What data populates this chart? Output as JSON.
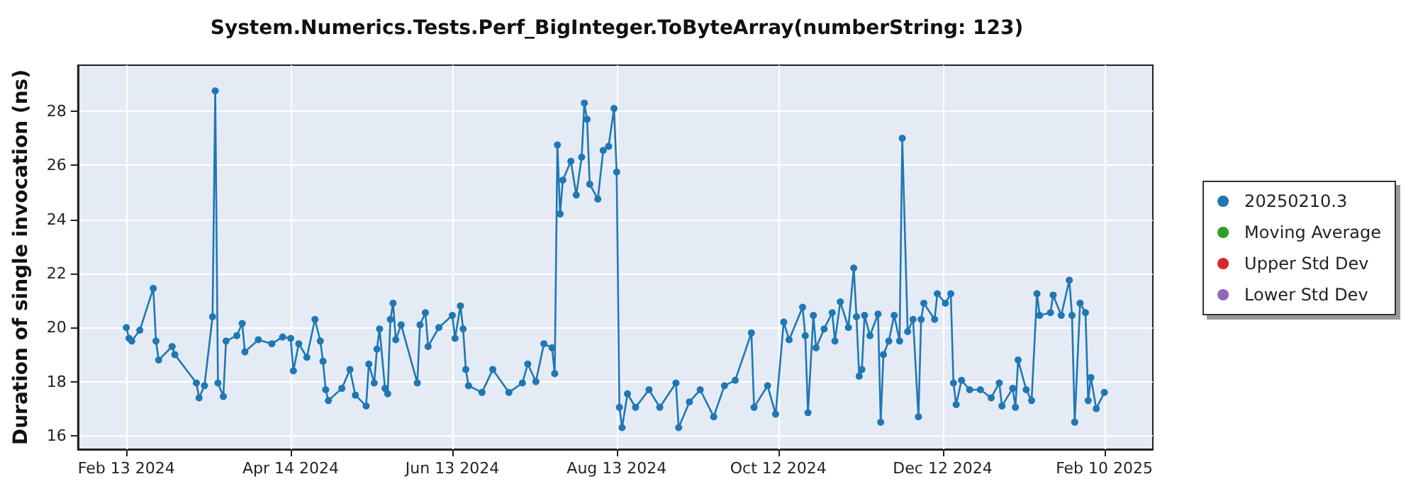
{
  "chart_data": {
    "type": "line",
    "title": "System.Numerics.Tests.Perf_BigInteger.ToByteArray(numberString: 123)",
    "ylabel": "Duration of single invocation (ns)",
    "xlim": [
      "2024-01-26",
      "2025-02-28"
    ],
    "xticks": [
      {
        "value": "2024-02-13",
        "label": "Feb 13 2024"
      },
      {
        "value": "2024-04-14",
        "label": "Apr 14 2024"
      },
      {
        "value": "2024-06-13",
        "label": "Jun 13 2024"
      },
      {
        "value": "2024-08-13",
        "label": "Aug 13 2024"
      },
      {
        "value": "2024-10-12",
        "label": "Oct 12 2024"
      },
      {
        "value": "2024-12-12",
        "label": "Dec 12 2024"
      },
      {
        "value": "2025-02-10",
        "label": "Feb 10 2025"
      }
    ],
    "ylim": [
      15.5,
      29.7
    ],
    "yticks": [
      16,
      18,
      20,
      22,
      24,
      26,
      28
    ],
    "grid": true,
    "legend": "right",
    "marker": "circle",
    "line_style": "solid",
    "series": [
      {
        "name": "20250210.3",
        "color": "#1f77b4",
        "x": [
          "2024-02-13",
          "2024-02-14",
          "2024-02-15",
          "2024-02-18",
          "2024-02-23",
          "2024-02-24",
          "2024-02-25",
          "2024-03-01",
          "2024-03-02",
          "2024-03-10",
          "2024-03-11",
          "2024-03-13",
          "2024-03-16",
          "2024-03-17",
          "2024-03-18",
          "2024-03-20",
          "2024-03-21",
          "2024-03-25",
          "2024-03-27",
          "2024-03-28",
          "2024-04-02",
          "2024-04-07",
          "2024-04-11",
          "2024-04-14",
          "2024-04-15",
          "2024-04-17",
          "2024-04-20",
          "2024-04-23",
          "2024-04-25",
          "2024-04-26",
          "2024-04-27",
          "2024-04-28",
          "2024-05-03",
          "2024-05-06",
          "2024-05-08",
          "2024-05-12",
          "2024-05-13",
          "2024-05-15",
          "2024-05-16",
          "2024-05-17",
          "2024-05-19",
          "2024-05-20",
          "2024-05-21",
          "2024-05-22",
          "2024-05-23",
          "2024-05-25",
          "2024-05-31",
          "2024-06-01",
          "2024-06-03",
          "2024-06-04",
          "2024-06-08",
          "2024-06-13",
          "2024-06-14",
          "2024-06-16",
          "2024-06-17",
          "2024-06-18",
          "2024-06-19",
          "2024-06-24",
          "2024-06-28",
          "2024-07-04",
          "2024-07-09",
          "2024-07-11",
          "2024-07-14",
          "2024-07-17",
          "2024-07-20",
          "2024-07-21",
          "2024-07-22",
          "2024-07-23",
          "2024-07-24",
          "2024-07-27",
          "2024-07-29",
          "2024-07-31",
          "2024-08-01",
          "2024-08-02",
          "2024-08-03",
          "2024-08-06",
          "2024-08-08",
          "2024-08-10",
          "2024-08-12",
          "2024-08-13",
          "2024-08-14",
          "2024-08-15",
          "2024-08-17",
          "2024-08-20",
          "2024-08-25",
          "2024-08-29",
          "2024-09-04",
          "2024-09-05",
          "2024-09-09",
          "2024-09-13",
          "2024-09-18",
          "2024-09-22",
          "2024-09-26",
          "2024-10-02",
          "2024-10-03",
          "2024-10-08",
          "2024-10-11",
          "2024-10-14",
          "2024-10-16",
          "2024-10-21",
          "2024-10-22",
          "2024-10-23",
          "2024-10-25",
          "2024-10-26",
          "2024-10-29",
          "2024-11-01",
          "2024-11-02",
          "2024-11-04",
          "2024-11-07",
          "2024-11-09",
          "2024-11-10",
          "2024-11-11",
          "2024-11-12",
          "2024-11-13",
          "2024-11-15",
          "2024-11-18",
          "2024-11-19",
          "2024-11-20",
          "2024-11-22",
          "2024-11-24",
          "2024-11-26",
          "2024-11-27",
          "2024-11-29",
          "2024-12-01",
          "2024-12-03",
          "2024-12-04",
          "2024-12-05",
          "2024-12-09",
          "2024-12-10",
          "2024-12-13",
          "2024-12-15",
          "2024-12-16",
          "2024-12-17",
          "2024-12-19",
          "2024-12-22",
          "2024-12-26",
          "2024-12-30",
          "2025-01-02",
          "2025-01-03",
          "2025-01-07",
          "2025-01-08",
          "2025-01-09",
          "2025-01-12",
          "2025-01-14",
          "2025-01-16",
          "2025-01-17",
          "2025-01-21",
          "2025-01-22",
          "2025-01-25",
          "2025-01-28",
          "2025-01-29",
          "2025-01-30",
          "2025-02-01",
          "2025-02-03",
          "2025-02-04",
          "2025-02-05",
          "2025-02-07",
          "2025-02-10"
        ],
        "values": [
          20.0,
          19.6,
          19.5,
          19.9,
          21.45,
          19.5,
          18.8,
          19.3,
          19.0,
          17.95,
          17.4,
          17.85,
          20.4,
          28.75,
          17.95,
          17.45,
          19.5,
          19.7,
          20.15,
          19.1,
          19.55,
          19.4,
          19.65,
          19.6,
          18.4,
          19.4,
          18.9,
          20.3,
          19.5,
          18.75,
          17.7,
          17.3,
          17.75,
          18.45,
          17.5,
          17.1,
          18.65,
          17.95,
          19.2,
          19.95,
          17.75,
          17.55,
          20.3,
          20.9,
          19.55,
          20.1,
          17.95,
          20.1,
          20.55,
          19.3,
          20.0,
          20.45,
          19.6,
          20.8,
          19.95,
          18.45,
          17.85,
          17.6,
          18.45,
          17.6,
          17.95,
          18.65,
          18.0,
          19.4,
          19.25,
          18.3,
          26.75,
          24.2,
          25.45,
          26.15,
          24.9,
          26.3,
          28.3,
          27.7,
          25.3,
          24.75,
          26.55,
          26.7,
          28.1,
          25.75,
          17.05,
          16.3,
          17.55,
          17.05,
          17.7,
          17.05,
          17.95,
          16.3,
          17.25,
          17.7,
          16.7,
          17.85,
          18.05,
          19.8,
          17.05,
          17.85,
          16.8,
          20.2,
          19.55,
          20.75,
          19.7,
          16.85,
          20.45,
          19.25,
          19.95,
          20.55,
          19.5,
          20.95,
          20.0,
          22.2,
          20.4,
          18.2,
          18.45,
          20.45,
          19.7,
          20.5,
          16.5,
          19.0,
          19.5,
          20.45,
          19.5,
          27.0,
          19.85,
          20.3,
          16.7,
          20.3,
          20.9,
          20.3,
          21.25,
          20.9,
          21.25,
          17.95,
          17.15,
          18.05,
          17.7,
          17.7,
          17.4,
          17.95,
          17.1,
          17.75,
          17.05,
          18.8,
          17.7,
          17.3,
          21.25,
          20.45,
          20.55,
          21.2,
          20.45,
          21.75,
          20.45,
          16.5,
          20.9,
          20.55,
          17.3,
          18.15,
          17.0,
          17.6
        ]
      },
      {
        "name": "Moving Average",
        "color": "#2ca02c"
      },
      {
        "name": "Upper Std Dev",
        "color": "#d62728"
      },
      {
        "name": "Lower Std Dev",
        "color": "#9467bd"
      }
    ]
  }
}
